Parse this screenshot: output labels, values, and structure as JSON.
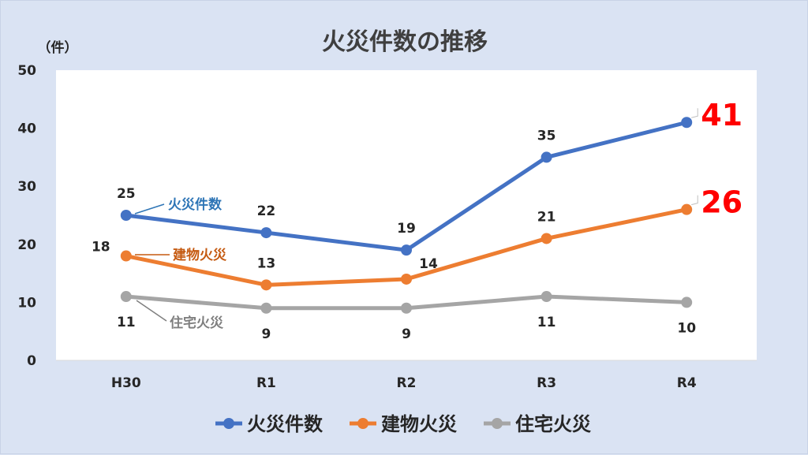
{
  "chart_data": {
    "type": "line",
    "title": "火災件数の推移",
    "ylabel": "（件）",
    "xlabel": "",
    "categories": [
      "H30",
      "R1",
      "R2",
      "R3",
      "R4"
    ],
    "ylim": [
      0,
      50
    ],
    "yticks": [
      0,
      10,
      20,
      30,
      40,
      50
    ],
    "grid": false,
    "legend_position": "bottom",
    "series": [
      {
        "name": "火災件数",
        "values": [
          25,
          22,
          19,
          35,
          41
        ],
        "color": "#4472c4",
        "label_color": "#2e75b6"
      },
      {
        "name": "建物火災",
        "values": [
          18,
          13,
          14,
          21,
          26
        ],
        "color": "#ed7d31",
        "label_color": "#c55a11"
      },
      {
        "name": "住宅火災",
        "values": [
          11,
          9,
          9,
          11,
          10
        ],
        "color": "#a5a5a5",
        "label_color": "#7f7f7f"
      }
    ],
    "highlight_color": "#ff0000"
  }
}
